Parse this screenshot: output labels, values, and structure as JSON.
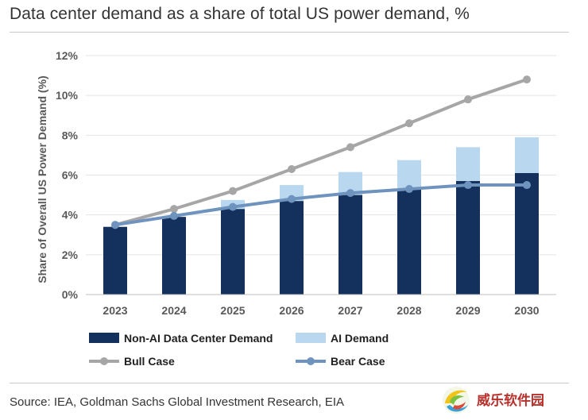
{
  "title": "Data center demand as a share of total US power demand, %",
  "source": "Source: IEA, Goldman Sachs Global Investment Research, EIA",
  "logo_text": "威乐软件园",
  "colors": {
    "non_ai": "#14305c",
    "ai": "#b9d8f0",
    "bull": "#a6a6a6",
    "bear": "#6f93bf",
    "grid": "#e4e4e4",
    "axis_text": "#595959"
  },
  "chart_data": {
    "type": "bar",
    "title": "Data center demand as a share of total US power demand, %",
    "xlabel": "",
    "ylabel": "Share of Overall US Power Demand (%)",
    "categories": [
      "2023",
      "2024",
      "2025",
      "2026",
      "2027",
      "2028",
      "2029",
      "2030"
    ],
    "y_ticks": [
      "0%",
      "2%",
      "4%",
      "6%",
      "8%",
      "10%",
      "12%"
    ],
    "ylim": [
      0,
      12
    ],
    "stacked": true,
    "series": [
      {
        "name": "Non-AI Data Center Demand",
        "kind": "bar",
        "values": [
          3.4,
          3.9,
          4.3,
          4.7,
          5.0,
          5.3,
          5.7,
          6.1
        ]
      },
      {
        "name": "AI Demand",
        "kind": "bar",
        "values": [
          0.0,
          0.0,
          0.45,
          0.8,
          1.15,
          1.45,
          1.7,
          1.8
        ]
      },
      {
        "name": "Bull Case",
        "kind": "line",
        "values": [
          3.5,
          4.3,
          5.2,
          6.3,
          7.4,
          8.6,
          9.8,
          10.8
        ]
      },
      {
        "name": "Bear Case",
        "kind": "line",
        "values": [
          3.5,
          3.95,
          4.4,
          4.8,
          5.1,
          5.3,
          5.5,
          5.5
        ]
      }
    ],
    "grid": true,
    "legend_position": "bottom"
  }
}
